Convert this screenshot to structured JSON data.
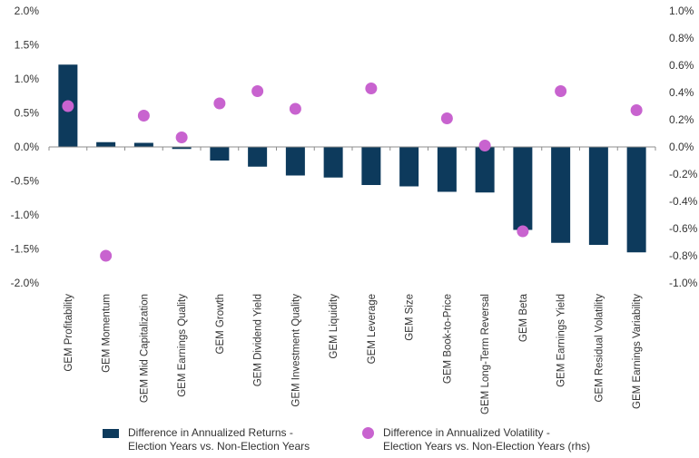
{
  "chart_data": {
    "type": "bar",
    "categories": [
      "GEM Profitability",
      "GEM Momentum",
      "GEM Mid Capitalization",
      "GEM Earnings Quality",
      "GEM Growth",
      "GEM Dividend Yield",
      "GEM Investment Quality",
      "GEM Liquidity",
      "GEM Leverage",
      "GEM Size",
      "GEM Book-to-Price",
      "GEM Long-Term Reversal",
      "GEM Beta",
      "GEM Earnings Yield",
      "GEM Residual Volatility",
      "GEM Earnings Variability"
    ],
    "series": [
      {
        "name": "Difference in Annualized Returns - Election Years vs. Non-Election Years",
        "name_line1": "Difference in Annualized Returns -",
        "name_line2": "Election Years vs. Non-Election Years",
        "type": "bar",
        "axis": "left",
        "color": "#0d3a5c",
        "values": [
          1.21,
          0.07,
          0.06,
          -0.03,
          -0.2,
          -0.29,
          -0.42,
          -0.45,
          -0.56,
          -0.58,
          -0.66,
          -0.67,
          -1.22,
          -1.41,
          -1.44,
          -1.55
        ]
      },
      {
        "name": "Difference in Annualized Volatility - Election Years vs. Non-Election Years (rhs)",
        "name_line1": "Difference in Annualized Volatility -",
        "name_line2": "Election Years vs. Non-Election Years (rhs)",
        "type": "scatter",
        "axis": "right",
        "color": "#c863cf",
        "values": [
          0.3,
          -0.8,
          0.23,
          0.07,
          0.32,
          0.41,
          0.28,
          null,
          0.43,
          null,
          0.21,
          0.01,
          -0.62,
          0.41,
          null,
          0.27
        ]
      }
    ],
    "ylim": [
      -2.0,
      2.0
    ],
    "y2lim": [
      -1.0,
      1.0
    ],
    "yticks": [
      "2.0%",
      "1.5%",
      "1.0%",
      "0.5%",
      "0.0%",
      "-0.5%",
      "-1.0%",
      "-1.5%",
      "-2.0%"
    ],
    "y2ticks": [
      "1.0%",
      "0.8%",
      "0.6%",
      "0.4%",
      "0.2%",
      "0.0%",
      "-0.2%",
      "-0.4%",
      "-0.6%",
      "-0.8%",
      "-1.0%"
    ],
    "grid": false,
    "legend_position": "bottom"
  }
}
